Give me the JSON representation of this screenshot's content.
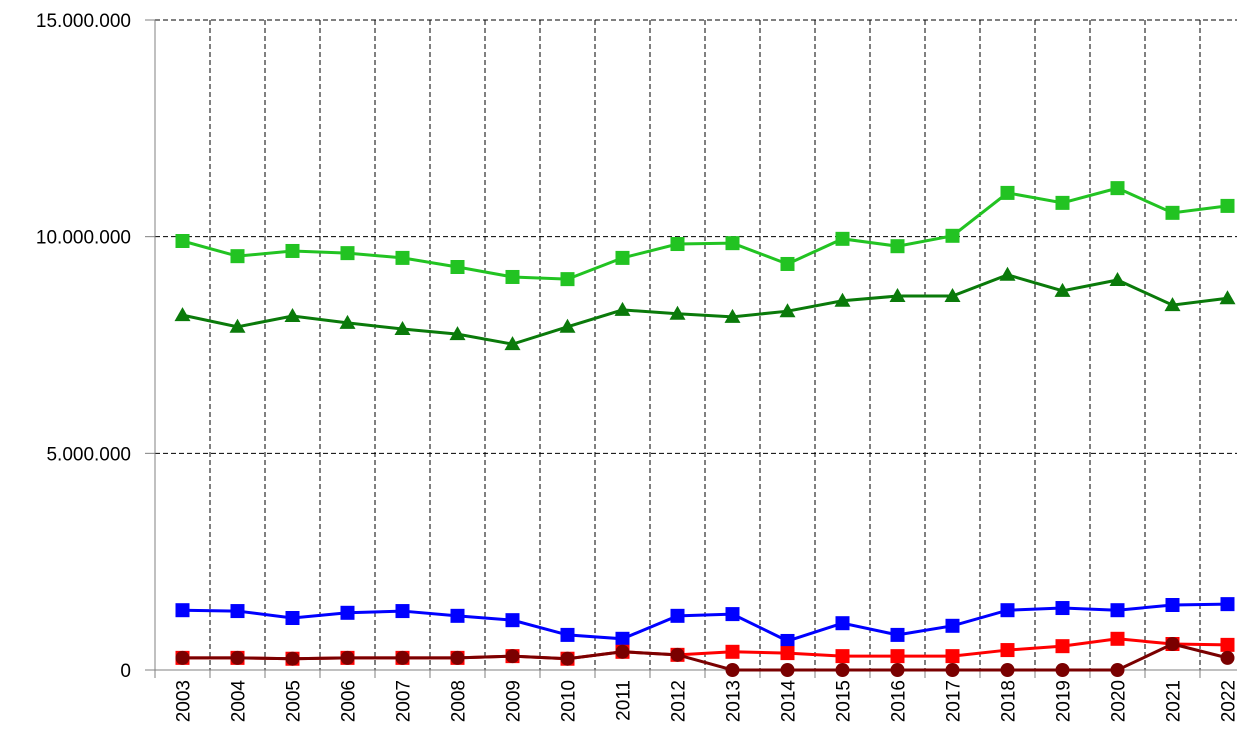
{
  "chart_data": {
    "type": "line",
    "categories": [
      "2003",
      "2004",
      "2005",
      "2006",
      "2007",
      "2008",
      "2009",
      "2010",
      "2011",
      "2012",
      "2013",
      "2014",
      "2015",
      "2016",
      "2017",
      "2018",
      "2019",
      "2020",
      "2021",
      "2022"
    ],
    "series": [
      {
        "color": "#22c322",
        "marker": "square",
        "values": [
          9900000,
          9550000,
          9670000,
          9620000,
          9510000,
          9300000,
          9070000,
          9020000,
          9510000,
          9830000,
          9850000,
          9370000,
          9950000,
          9780000,
          10020000,
          11010000,
          10780000,
          11120000,
          10550000,
          10710000
        ]
      },
      {
        "color": "#0a7a0a",
        "marker": "triangle",
        "values": [
          8190000,
          7920000,
          8170000,
          8010000,
          7870000,
          7750000,
          7520000,
          7920000,
          8310000,
          8220000,
          8150000,
          8280000,
          8520000,
          8630000,
          8630000,
          9120000,
          8750000,
          9000000,
          8420000,
          8580000
        ]
      },
      {
        "color": "#0000ff",
        "marker": "square",
        "values": [
          1380000,
          1360000,
          1200000,
          1320000,
          1360000,
          1250000,
          1150000,
          810000,
          720000,
          1250000,
          1290000,
          670000,
          1080000,
          810000,
          1020000,
          1380000,
          1430000,
          1380000,
          1500000,
          1520000
        ]
      },
      {
        "color": "#ff0000",
        "marker": "square",
        "values": [
          280000,
          280000,
          260000,
          280000,
          280000,
          280000,
          320000,
          260000,
          420000,
          350000,
          420000,
          390000,
          320000,
          320000,
          320000,
          460000,
          550000,
          720000,
          600000,
          580000
        ]
      },
      {
        "color": "#7a0000",
        "marker": "circle",
        "values": [
          280000,
          280000,
          260000,
          280000,
          280000,
          280000,
          320000,
          260000,
          420000,
          350000,
          0,
          0,
          0,
          0,
          0,
          0,
          0,
          0,
          600000,
          280000
        ]
      }
    ],
    "ylim": [
      0,
      15000000
    ],
    "yticks": [
      0,
      {
        "value": 5000000,
        "label": "5.000.000"
      },
      {
        "value": 10000000,
        "label": "10.000.000"
      },
      {
        "value": 15000000,
        "label": "15.000.000"
      }
    ],
    "grid": true
  }
}
